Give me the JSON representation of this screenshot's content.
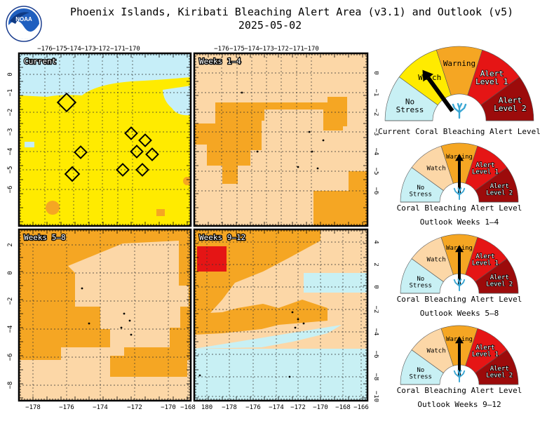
{
  "header": {
    "title_line1": "Phoenix Islands, Kiribati Bleaching Alert Area (v3.1) and Outlook (v5)",
    "title_line2": "2025-05-02",
    "logo_text": "NOAA"
  },
  "colors": {
    "no_stress": "#c8f0f4",
    "watch": "#fcd7a7",
    "warning": "#f5a623",
    "alert1": "#e51515",
    "alert2": "#9c0b0b",
    "current_watch": "#ffeb00",
    "current_nostress": "#c6eef8"
  },
  "panels": {
    "current": {
      "label": "Current",
      "x_ticks": [
        "−176",
        "−175",
        "−174",
        "−173",
        "−172",
        "−171",
        "−170"
      ],
      "y_ticks": [
        "0",
        "−1",
        "−2",
        "−3",
        "−4",
        "−5",
        "−6"
      ]
    },
    "weeks_1_4": {
      "label": "Weeks 1–4",
      "x_ticks": [
        "−176",
        "−175",
        "−174",
        "−173",
        "−172",
        "−171",
        "−170"
      ],
      "y_ticks": [
        "0",
        "−1",
        "−2",
        "−3",
        "−4",
        "−5",
        "−6"
      ]
    },
    "weeks_5_8": {
      "label": "Weeks 5–8",
      "x_ticks": [
        "−178",
        "−176",
        "−174",
        "−172",
        "−170",
        "−168"
      ],
      "y_ticks": [
        "2",
        "0",
        "−2",
        "−4",
        "−6",
        "−8"
      ]
    },
    "weeks_9_12": {
      "label": "Weeks 9–12",
      "x_ticks": [
        "180",
        "−178",
        "−176",
        "−174",
        "−172",
        "−170",
        "−168",
        "−166"
      ],
      "y_ticks": [
        "4",
        "2",
        "0",
        "−2",
        "−4",
        "−6",
        "−8",
        "−10"
      ]
    }
  },
  "gauge_labels": {
    "no_stress": [
      "No",
      "Stress"
    ],
    "watch": "Watch",
    "warning": "Warning",
    "alert1": [
      "Alert",
      "Level 1"
    ],
    "alert2": [
      "Alert",
      "Level 2"
    ]
  },
  "gauges": [
    {
      "caption1": "Current Coral Bleaching Alert Level",
      "caption2": "",
      "level": "watch"
    },
    {
      "caption1": "Coral Bleaching Alert Level",
      "caption2": "Outlook Weeks 1–4",
      "level": "warning"
    },
    {
      "caption1": "Coral Bleaching Alert Level",
      "caption2": "Outlook Weeks 5–8",
      "level": "warning"
    },
    {
      "caption1": "Coral Bleaching Alert Level",
      "caption2": "Outlook Weeks 9–12",
      "level": "warning"
    }
  ]
}
